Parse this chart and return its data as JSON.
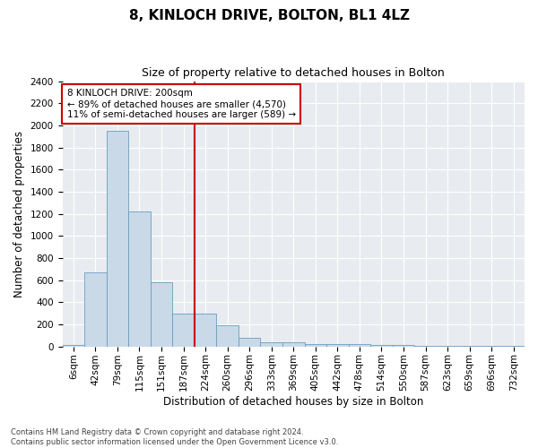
{
  "title": "8, KINLOCH DRIVE, BOLTON, BL1 4LZ",
  "subtitle": "Size of property relative to detached houses in Bolton",
  "xlabel": "Distribution of detached houses by size in Bolton",
  "ylabel": "Number of detached properties",
  "categories": [
    "6sqm",
    "42sqm",
    "79sqm",
    "115sqm",
    "151sqm",
    "187sqm",
    "224sqm",
    "260sqm",
    "296sqm",
    "333sqm",
    "369sqm",
    "405sqm",
    "442sqm",
    "478sqm",
    "514sqm",
    "550sqm",
    "587sqm",
    "623sqm",
    "659sqm",
    "696sqm",
    "732sqm"
  ],
  "values": [
    10,
    670,
    1950,
    1220,
    580,
    300,
    300,
    195,
    75,
    40,
    35,
    25,
    20,
    18,
    15,
    12,
    8,
    5,
    3,
    2,
    2
  ],
  "bar_color": "#c9d9e8",
  "bar_edge_color": "#6a9ec0",
  "vline_x": 5.5,
  "vline_color": "#cc0000",
  "annotation_text": "8 KINLOCH DRIVE: 200sqm\n← 89% of detached houses are smaller (4,570)\n11% of semi-detached houses are larger (589) →",
  "annotation_box_color": "#ffffff",
  "annotation_box_edge": "#cc0000",
  "ylim": [
    0,
    2400
  ],
  "yticks": [
    0,
    200,
    400,
    600,
    800,
    1000,
    1200,
    1400,
    1600,
    1800,
    2000,
    2200,
    2400
  ],
  "bg_color": "#ffffff",
  "plot_bg_color": "#e8ecf0",
  "grid_color": "#ffffff",
  "footer_text": "Contains HM Land Registry data © Crown copyright and database right 2024.\nContains public sector information licensed under the Open Government Licence v3.0.",
  "title_fontsize": 11,
  "subtitle_fontsize": 9,
  "axis_label_fontsize": 8.5,
  "tick_fontsize": 7.5,
  "annotation_fontsize": 7.5,
  "footer_fontsize": 6
}
